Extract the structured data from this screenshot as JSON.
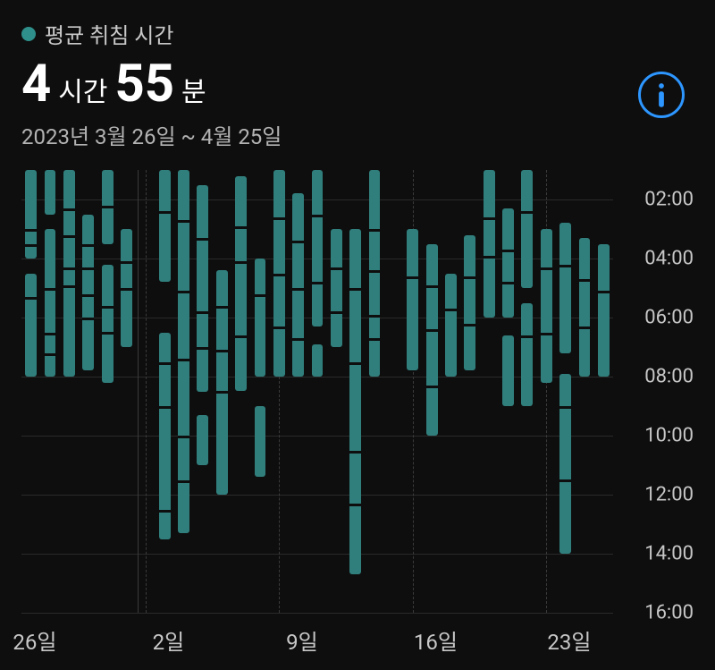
{
  "header": {
    "legend_label": "평균 취침 시간"
  },
  "metric": {
    "hours_value": "4",
    "hours_unit": "시간",
    "minutes_value": "55",
    "minutes_unit": "분"
  },
  "date_range": "2023년 3월 26일 ~ 4월 25일",
  "info_button": {
    "name": "info"
  },
  "chart": {
    "type": "range-bar",
    "background_color": "#0e0e0e",
    "bar_color": "#307f7d",
    "grid_color": "#2a2a2a",
    "vgrid_color": "#3a3a3a",
    "text_color": "#c7c7c7",
    "bar_width_ratio": 0.6,
    "y_min": 1,
    "y_max": 16,
    "y_ticks": [
      {
        "v": 2,
        "label": "02:00"
      },
      {
        "v": 4,
        "label": "04:00"
      },
      {
        "v": 6,
        "label": "06:00"
      },
      {
        "v": 8,
        "label": "08:00"
      },
      {
        "v": 10,
        "label": "10:00"
      },
      {
        "v": 12,
        "label": "12:00"
      },
      {
        "v": 14,
        "label": "14:00"
      },
      {
        "v": 16,
        "label": "16:00"
      }
    ],
    "x_ticks": [
      {
        "day": 0,
        "label": "26일"
      },
      {
        "day": 7,
        "label": "2일"
      },
      {
        "day": 14,
        "label": "9일"
      },
      {
        "day": 21,
        "label": "16일"
      },
      {
        "day": 28,
        "label": "23일"
      }
    ],
    "bars": [
      {
        "day": 0,
        "segments": [
          {
            "s": 1,
            "e": 4.0
          },
          {
            "s": 4.5,
            "e": 8.0
          }
        ],
        "gaps": [
          3.0,
          3.5,
          5.3
        ]
      },
      {
        "day": 1,
        "segments": [
          {
            "s": 1,
            "e": 2.5
          },
          {
            "s": 3.0,
            "e": 8.0
          }
        ],
        "gaps": [
          5.0,
          6.5,
          7.2
        ]
      },
      {
        "day": 2,
        "segments": [
          {
            "s": 1,
            "e": 8.0
          }
        ],
        "gaps": [
          2.3,
          3.2,
          4.3,
          4.9
        ]
      },
      {
        "day": 3,
        "segments": [
          {
            "s": 2.5,
            "e": 7.8
          }
        ],
        "gaps": [
          3.5,
          4.3,
          5.2,
          6.0
        ]
      },
      {
        "day": 4,
        "segments": [
          {
            "s": 1,
            "e": 3.5
          },
          {
            "s": 4.2,
            "e": 8.2
          }
        ],
        "gaps": [
          2.2,
          5.6,
          6.5
        ]
      },
      {
        "day": 5,
        "segments": [
          {
            "s": 3.0,
            "e": 7.0
          }
        ],
        "gaps": [
          4.1,
          5.0
        ]
      },
      {
        "day": 7,
        "segments": [
          {
            "s": 1,
            "e": 4.8
          },
          {
            "s": 6.5,
            "e": 13.5
          }
        ],
        "gaps": [
          2.4,
          7.5,
          9.0,
          12.5
        ]
      },
      {
        "day": 8,
        "segments": [
          {
            "s": 1,
            "e": 13.3
          }
        ],
        "gaps": [
          2.7,
          5.1,
          7.4,
          10.0,
          11.5
        ]
      },
      {
        "day": 9,
        "segments": [
          {
            "s": 1.5,
            "e": 8.5
          },
          {
            "s": 9.3,
            "e": 11.0
          }
        ],
        "gaps": [
          3.3,
          5.8,
          7.0
        ]
      },
      {
        "day": 10,
        "segments": [
          {
            "s": 4.4,
            "e": 12.0
          }
        ],
        "gaps": [
          5.6,
          7.1,
          8.5
        ]
      },
      {
        "day": 11,
        "segments": [
          {
            "s": 1.2,
            "e": 8.5
          }
        ],
        "gaps": [
          2.9,
          4.1,
          6.6
        ]
      },
      {
        "day": 12,
        "segments": [
          {
            "s": 4.0,
            "e": 8.0
          },
          {
            "s": 9.0,
            "e": 11.4
          }
        ],
        "gaps": [
          5.2
        ]
      },
      {
        "day": 13,
        "segments": [
          {
            "s": 1,
            "e": 8.0
          }
        ],
        "gaps": [
          2.6,
          4.5,
          6.3
        ]
      },
      {
        "day": 14,
        "segments": [
          {
            "s": 1.8,
            "e": 8.0
          }
        ],
        "gaps": [
          3.4,
          5.0,
          6.7
        ]
      },
      {
        "day": 15,
        "segments": [
          {
            "s": 1,
            "e": 6.3
          },
          {
            "s": 6.9,
            "e": 8.0
          }
        ],
        "gaps": [
          2.5,
          4.8
        ]
      },
      {
        "day": 16,
        "segments": [
          {
            "s": 3.0,
            "e": 7.0
          }
        ],
        "gaps": [
          4.3,
          5.8
        ]
      },
      {
        "day": 17,
        "segments": [
          {
            "s": 3.0,
            "e": 14.7
          }
        ],
        "gaps": [
          5.0,
          7.5,
          10.5,
          12.3
        ]
      },
      {
        "day": 18,
        "segments": [
          {
            "s": 1,
            "e": 8.0
          }
        ],
        "gaps": [
          3.0,
          4.4,
          5.9,
          6.7
        ]
      },
      {
        "day": 20,
        "segments": [
          {
            "s": 3.0,
            "e": 7.8
          }
        ],
        "gaps": [
          4.6
        ]
      },
      {
        "day": 21,
        "segments": [
          {
            "s": 3.5,
            "e": 10.0
          }
        ],
        "gaps": [
          4.9,
          6.4,
          8.3
        ]
      },
      {
        "day": 22,
        "segments": [
          {
            "s": 4.5,
            "e": 8.0
          }
        ],
        "gaps": [
          5.7
        ]
      },
      {
        "day": 23,
        "segments": [
          {
            "s": 3.2,
            "e": 7.8
          }
        ],
        "gaps": [
          4.6,
          6.2
        ]
      },
      {
        "day": 24,
        "segments": [
          {
            "s": 1,
            "e": 6.0
          }
        ],
        "gaps": [
          2.6,
          3.9
        ]
      },
      {
        "day": 25,
        "segments": [
          {
            "s": 2.3,
            "e": 6.0
          },
          {
            "s": 6.6,
            "e": 9.0
          }
        ],
        "gaps": [
          3.7,
          4.8
        ]
      },
      {
        "day": 26,
        "segments": [
          {
            "s": 1,
            "e": 5.0
          },
          {
            "s": 5.5,
            "e": 9.0
          }
        ],
        "gaps": [
          2.4,
          6.6
        ]
      },
      {
        "day": 27,
        "segments": [
          {
            "s": 3.0,
            "e": 8.2
          }
        ],
        "gaps": [
          4.3,
          6.5
        ]
      },
      {
        "day": 28,
        "segments": [
          {
            "s": 2.8,
            "e": 7.2
          },
          {
            "s": 7.9,
            "e": 14.0
          }
        ],
        "gaps": [
          4.2,
          9.0,
          11.5
        ]
      },
      {
        "day": 29,
        "segments": [
          {
            "s": 3.3,
            "e": 8.0
          }
        ],
        "gaps": [
          4.7,
          6.3
        ]
      },
      {
        "day": 30,
        "segments": [
          {
            "s": 3.5,
            "e": 8.0
          }
        ],
        "gaps": [
          5.1
        ]
      }
    ],
    "num_days": 31
  }
}
